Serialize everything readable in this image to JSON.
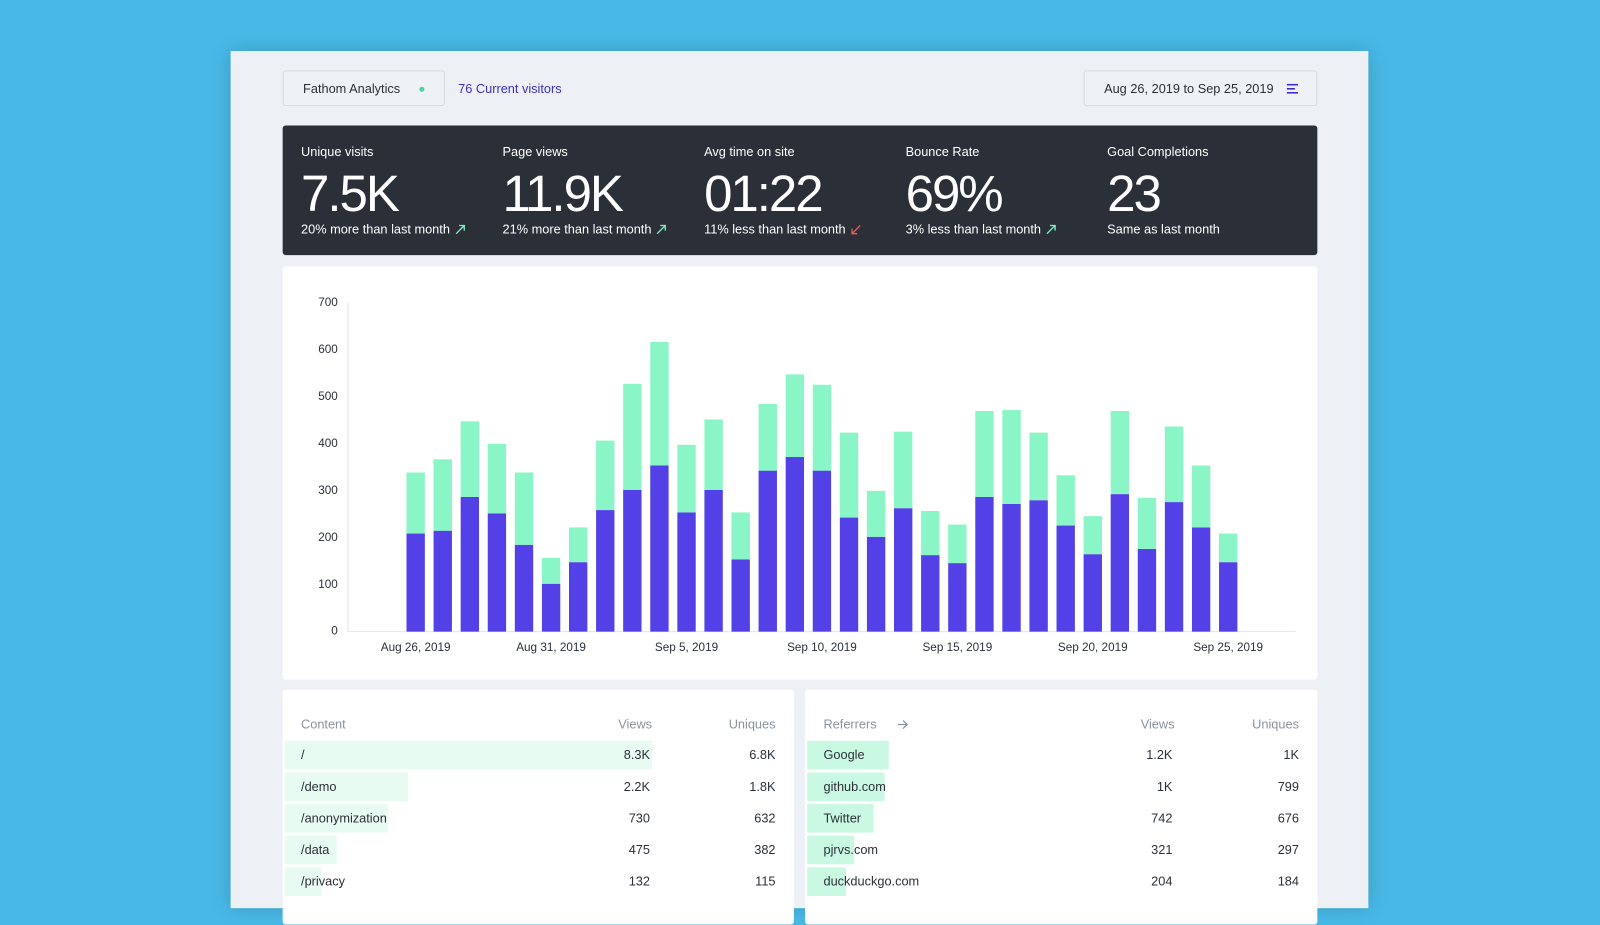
{
  "header": {
    "site": "Fathom Analytics",
    "visitors": "76 Current visitors",
    "date_range": "Aug 26, 2019 to Sep 25, 2019"
  },
  "stats": [
    {
      "label": "Unique visits",
      "value": "7.5K",
      "comparison": "20% more than last month"
    },
    {
      "label": "Page views",
      "value": "11.9K",
      "comparison": "21% more than last month"
    },
    {
      "label": "Avg time on site",
      "value": "01:22",
      "comparison": "11% less than last month"
    },
    {
      "label": "Bounce Rate",
      "value": "69%",
      "comparison": "3% less than last month"
    },
    {
      "label": "Goal Completions",
      "value": "23",
      "comparison": "Same as last month"
    }
  ],
  "chart_data": {
    "type": "stacked_bar",
    "categories": [
      "Aug 26, 2019",
      null,
      null,
      null,
      null,
      "Aug 31, 2019",
      null,
      null,
      null,
      null,
      "Sep 5, 2019",
      null,
      null,
      null,
      null,
      "Sep 10, 2019",
      null,
      null,
      null,
      null,
      "Sep 15, 2019",
      null,
      null,
      null,
      null,
      "Sep 20, 2019",
      null,
      null,
      null,
      null,
      "Sep 25, 2019"
    ],
    "series": [
      {
        "color": "#5340e6",
        "values": [
          209,
          215,
          287,
          252,
          185,
          102,
          148,
          259,
          302,
          354,
          254,
          302,
          154,
          343,
          372,
          343,
          243,
          202,
          263,
          163,
          146,
          287,
          272,
          280,
          226,
          165,
          293,
          176,
          276,
          222,
          148
        ]
      },
      {
        "color": "#8af5c6",
        "values": [
          130,
          152,
          161,
          148,
          154,
          55,
          74,
          148,
          226,
          263,
          144,
          150,
          100,
          142,
          176,
          183,
          181,
          98,
          163,
          94,
          82,
          183,
          200,
          144,
          107,
          81,
          177,
          109,
          161,
          132,
          61
        ]
      }
    ],
    "ylim": [
      0,
      700
    ],
    "yticks": [
      0,
      100,
      200,
      300,
      400,
      500,
      600,
      700
    ],
    "grid": false
  },
  "tables": [
    {
      "title": "Content",
      "columns": [
        "Views",
        "Uniques"
      ],
      "rows": [
        [
          "/",
          "8.3K",
          "6.8K"
        ],
        [
          "/demo",
          "2.2K",
          "1.8K"
        ],
        [
          "/anonymization",
          "730",
          "632"
        ],
        [
          "/data",
          "475",
          "382"
        ],
        [
          "/privacy",
          "132",
          "115"
        ]
      ]
    },
    {
      "title": "Referrers",
      "columns": [
        "Views",
        "Uniques"
      ],
      "rows": [
        [
          "Google",
          "1.2K",
          "1K"
        ],
        [
          "github.com",
          "1K",
          "799"
        ],
        [
          "Twitter",
          "742",
          "676"
        ],
        [
          "pjrvs.com",
          "321",
          "297"
        ],
        [
          "duckduckgo.com",
          "204",
          "184"
        ]
      ]
    }
  ]
}
